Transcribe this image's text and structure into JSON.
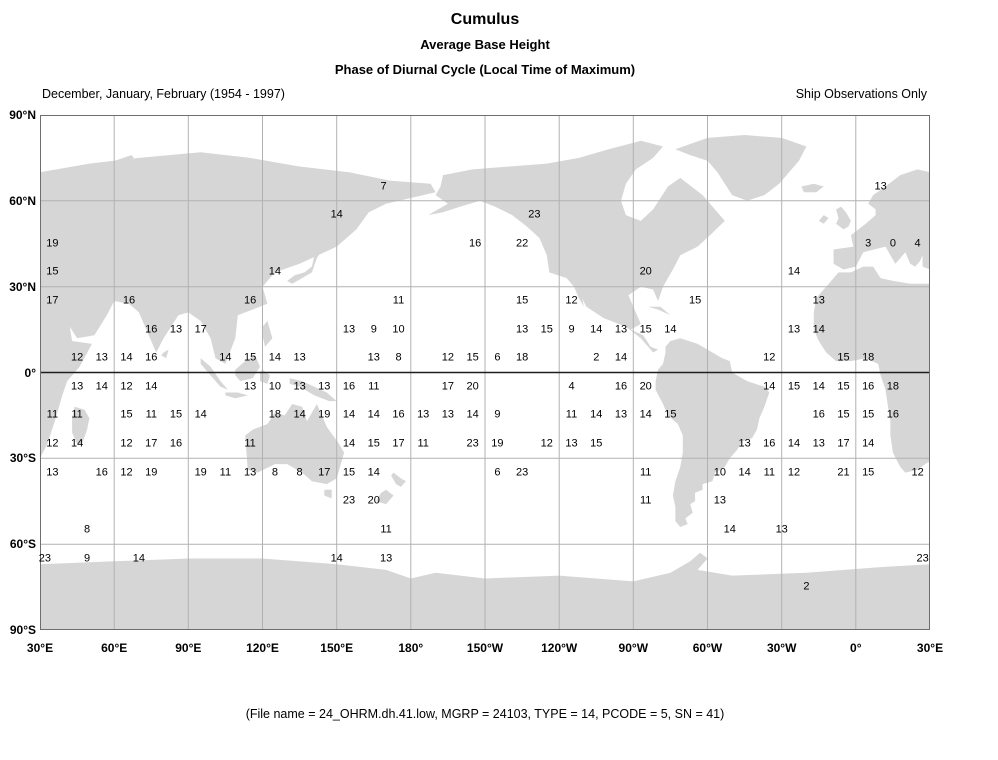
{
  "header": {
    "title": "Cumulus",
    "subtitle1": "Average Base Height",
    "subtitle2": "Phase of Diurnal Cycle (Local Time of Maximum)",
    "period": "December, January, February (1954 - 1997)",
    "source": "Ship Observations Only"
  },
  "footer": {
    "text": "(File name = 24_OHRM.dh.41.low, MGRP = 24103, TYPE = 14, PCODE = 5, SN = 41)"
  },
  "colors": {
    "land": "#d6d6d6",
    "grid": "#b2b2b2",
    "equator": "#1f1f1f",
    "frame": "#6e6e6e",
    "text": "#000000"
  },
  "chart_data": {
    "type": "heatmap",
    "subtype": "gridded-world-map-values",
    "title": "Cumulus - Average Base Height - Phase of Diurnal Cycle (Local Time of Maximum)",
    "season": "December, January, February (1954 - 1997)",
    "source": "Ship Observations Only",
    "value_meaning": "local hour (0-23) of diurnal cycle maximum, plotted at 10-degree grid cell centers over ocean",
    "projection": "equirectangular, left edge at 30E, map spans 360 degrees of longitude",
    "lon_left_deg_east": 30,
    "grid_interval_deg": 30,
    "lat_ticks": [
      "90°N",
      "60°N",
      "30°N",
      "0°",
      "30°S",
      "60°S",
      "90°S"
    ],
    "lon_ticks": [
      "30°E",
      "60°E",
      "90°E",
      "120°E",
      "150°E",
      "180°",
      "150°W",
      "120°W",
      "90°W",
      "60°W",
      "30°W",
      "0°",
      "30°E"
    ],
    "points_format": [
      "lat_deg_north",
      "lon_deg_east(negative=west)",
      "value"
    ],
    "points": [
      [
        65,
        169,
        "7"
      ],
      [
        65,
        10,
        "13"
      ],
      [
        55,
        150,
        "14"
      ],
      [
        55,
        -130,
        "23"
      ],
      [
        45,
        35,
        "19"
      ],
      [
        45,
        -154,
        "16"
      ],
      [
        45,
        -135,
        "22"
      ],
      [
        45,
        5,
        "3"
      ],
      [
        45,
        15,
        "0"
      ],
      [
        45,
        25,
        "4"
      ],
      [
        35,
        35,
        "15"
      ],
      [
        35,
        125,
        "14"
      ],
      [
        35,
        -85,
        "20"
      ],
      [
        35,
        -25,
        "14"
      ],
      [
        25,
        35,
        "17"
      ],
      [
        25,
        66,
        "16"
      ],
      [
        25,
        115,
        "16"
      ],
      [
        25,
        175,
        "11"
      ],
      [
        25,
        -135,
        "15"
      ],
      [
        25,
        -115,
        "12"
      ],
      [
        25,
        -65,
        "15"
      ],
      [
        25,
        -15,
        "13"
      ],
      [
        15,
        75,
        "16"
      ],
      [
        15,
        85,
        "13"
      ],
      [
        15,
        95,
        "17"
      ],
      [
        15,
        155,
        "13"
      ],
      [
        15,
        165,
        "9"
      ],
      [
        15,
        175,
        "10"
      ],
      [
        15,
        -135,
        "13"
      ],
      [
        15,
        -125,
        "15"
      ],
      [
        15,
        -115,
        "9"
      ],
      [
        15,
        -105,
        "14"
      ],
      [
        15,
        -95,
        "13"
      ],
      [
        15,
        -85,
        "15"
      ],
      [
        15,
        -75,
        "14"
      ],
      [
        15,
        -25,
        "13"
      ],
      [
        15,
        -15,
        "14"
      ],
      [
        5,
        45,
        "12"
      ],
      [
        5,
        55,
        "13"
      ],
      [
        5,
        65,
        "14"
      ],
      [
        5,
        75,
        "16"
      ],
      [
        5,
        105,
        "14"
      ],
      [
        5,
        115,
        "15"
      ],
      [
        5,
        125,
        "14"
      ],
      [
        5,
        135,
        "13"
      ],
      [
        5,
        165,
        "13"
      ],
      [
        5,
        175,
        "8"
      ],
      [
        5,
        -165,
        "12"
      ],
      [
        5,
        -155,
        "15"
      ],
      [
        5,
        -145,
        "6"
      ],
      [
        5,
        -135,
        "18"
      ],
      [
        5,
        -105,
        "2"
      ],
      [
        5,
        -95,
        "14"
      ],
      [
        5,
        -35,
        "12"
      ],
      [
        5,
        -5,
        "15"
      ],
      [
        5,
        5,
        "18"
      ],
      [
        -5,
        45,
        "13"
      ],
      [
        -5,
        55,
        "14"
      ],
      [
        -5,
        65,
        "12"
      ],
      [
        -5,
        75,
        "14"
      ],
      [
        -5,
        115,
        "13"
      ],
      [
        -5,
        125,
        "10"
      ],
      [
        -5,
        135,
        "13"
      ],
      [
        -5,
        145,
        "13"
      ],
      [
        -5,
        155,
        "16"
      ],
      [
        -5,
        165,
        "11"
      ],
      [
        -5,
        -165,
        "17"
      ],
      [
        -5,
        -155,
        "20"
      ],
      [
        -5,
        -115,
        "4"
      ],
      [
        -5,
        -95,
        "16"
      ],
      [
        -5,
        -85,
        "20"
      ],
      [
        -5,
        -35,
        "14"
      ],
      [
        -5,
        -25,
        "15"
      ],
      [
        -5,
        -15,
        "14"
      ],
      [
        -5,
        -5,
        "15"
      ],
      [
        -5,
        5,
        "16"
      ],
      [
        -5,
        15,
        "18"
      ],
      [
        -15,
        35,
        "11"
      ],
      [
        -15,
        45,
        "11"
      ],
      [
        -15,
        65,
        "15"
      ],
      [
        -15,
        75,
        "11"
      ],
      [
        -15,
        85,
        "15"
      ],
      [
        -15,
        95,
        "14"
      ],
      [
        -15,
        125,
        "18"
      ],
      [
        -15,
        135,
        "14"
      ],
      [
        -15,
        145,
        "19"
      ],
      [
        -15,
        155,
        "14"
      ],
      [
        -15,
        165,
        "14"
      ],
      [
        -15,
        175,
        "16"
      ],
      [
        -15,
        -175,
        "13"
      ],
      [
        -15,
        -165,
        "13"
      ],
      [
        -15,
        -155,
        "14"
      ],
      [
        -15,
        -145,
        "9"
      ],
      [
        -15,
        -115,
        "11"
      ],
      [
        -15,
        -105,
        "14"
      ],
      [
        -15,
        -95,
        "13"
      ],
      [
        -15,
        -85,
        "14"
      ],
      [
        -15,
        -75,
        "15"
      ],
      [
        -15,
        -15,
        "16"
      ],
      [
        -15,
        -5,
        "15"
      ],
      [
        -15,
        5,
        "15"
      ],
      [
        -15,
        15,
        "16"
      ],
      [
        -25,
        35,
        "12"
      ],
      [
        -25,
        45,
        "14"
      ],
      [
        -25,
        65,
        "12"
      ],
      [
        -25,
        75,
        "17"
      ],
      [
        -25,
        85,
        "16"
      ],
      [
        -25,
        115,
        "11"
      ],
      [
        -25,
        155,
        "14"
      ],
      [
        -25,
        165,
        "15"
      ],
      [
        -25,
        175,
        "17"
      ],
      [
        -25,
        -175,
        "11"
      ],
      [
        -25,
        -155,
        "23"
      ],
      [
        -25,
        -145,
        "19"
      ],
      [
        -25,
        -125,
        "12"
      ],
      [
        -25,
        -115,
        "13"
      ],
      [
        -25,
        -105,
        "15"
      ],
      [
        -25,
        -45,
        "13"
      ],
      [
        -25,
        -35,
        "16"
      ],
      [
        -25,
        -25,
        "14"
      ],
      [
        -25,
        -15,
        "13"
      ],
      [
        -25,
        -5,
        "17"
      ],
      [
        -25,
        5,
        "14"
      ],
      [
        -35,
        35,
        "13"
      ],
      [
        -35,
        55,
        "16"
      ],
      [
        -35,
        65,
        "12"
      ],
      [
        -35,
        75,
        "19"
      ],
      [
        -35,
        95,
        "19"
      ],
      [
        -35,
        105,
        "11"
      ],
      [
        -35,
        115,
        "13"
      ],
      [
        -35,
        125,
        "8"
      ],
      [
        -35,
        135,
        "8"
      ],
      [
        -35,
        145,
        "17"
      ],
      [
        -35,
        155,
        "15"
      ],
      [
        -35,
        165,
        "14"
      ],
      [
        -35,
        -145,
        "6"
      ],
      [
        -35,
        -135,
        "23"
      ],
      [
        -35,
        -85,
        "11"
      ],
      [
        -35,
        -55,
        "10"
      ],
      [
        -35,
        -45,
        "14"
      ],
      [
        -35,
        -35,
        "11"
      ],
      [
        -35,
        -25,
        "12"
      ],
      [
        -35,
        -5,
        "21"
      ],
      [
        -35,
        5,
        "15"
      ],
      [
        -35,
        25,
        "12"
      ],
      [
        -45,
        155,
        "23"
      ],
      [
        -45,
        165,
        "20"
      ],
      [
        -45,
        -85,
        "11"
      ],
      [
        -45,
        -55,
        "13"
      ],
      [
        -55,
        49,
        "8"
      ],
      [
        -55,
        170,
        "11"
      ],
      [
        -55,
        -51,
        "14"
      ],
      [
        -55,
        -30,
        "13"
      ],
      [
        -65,
        32,
        "23"
      ],
      [
        -65,
        49,
        "9"
      ],
      [
        -65,
        70,
        "14"
      ],
      [
        -65,
        150,
        "14"
      ],
      [
        -65,
        170,
        "13"
      ],
      [
        -65,
        27,
        "23"
      ],
      [
        -75,
        -20,
        "2"
      ]
    ]
  }
}
